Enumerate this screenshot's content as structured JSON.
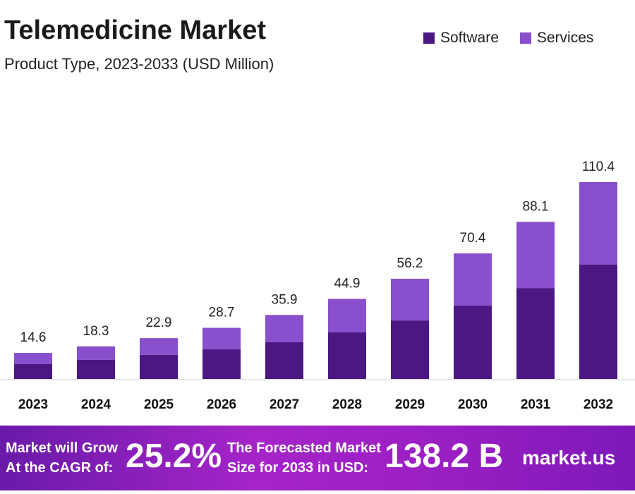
{
  "header": {
    "title": "Telemedicine Market",
    "subtitle": "Product Type, 2023-2033 (USD Million)"
  },
  "banner": {
    "cagr_text_line1": "Market will Grow",
    "cagr_text_line2": "At the CAGR of:",
    "cagr_value": "25.2%",
    "forecast_text_line1": "The Forecasted Market",
    "forecast_text_line2": "Size for 2033 in USD:",
    "forecast_value": "138.2 B",
    "logo": "market.us"
  },
  "chart_data": {
    "type": "bar",
    "stacked": true,
    "title": "Telemedicine Market",
    "categories": [
      "2023",
      "2024",
      "2025",
      "2026",
      "2027",
      "2028",
      "2029",
      "2030",
      "2031",
      "2032"
    ],
    "totals_labels": [
      "14.6",
      "18.3",
      "22.9",
      "28.7",
      "35.9",
      "44.9",
      "56.2",
      "70.4",
      "88.1",
      "110.4"
    ],
    "series": [
      {
        "name": "Software",
        "color": "#4b1783",
        "values": [
          8.3,
          10.7,
          13.5,
          16.6,
          20.6,
          26.1,
          32.8,
          41.2,
          51.0,
          64.1
        ]
      },
      {
        "name": "Services",
        "color": "#8a4fcc",
        "values": [
          6.3,
          7.6,
          9.4,
          12.1,
          15.3,
          18.8,
          23.4,
          29.2,
          37.1,
          46.3
        ]
      }
    ],
    "ylim": [
      0,
      110.4
    ],
    "grid": false,
    "legend": "top-right"
  }
}
